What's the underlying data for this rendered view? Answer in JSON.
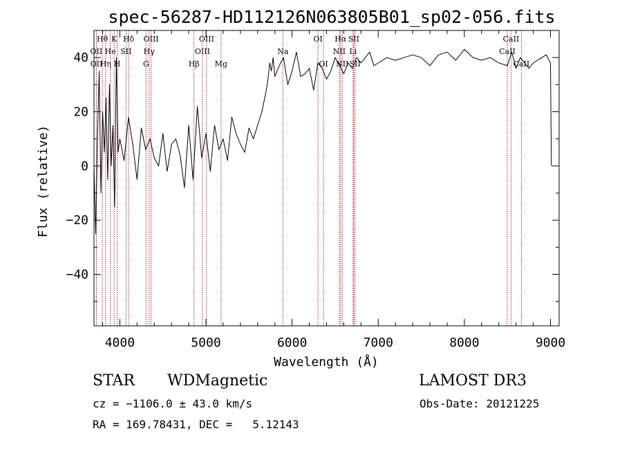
{
  "header": {
    "title": "spec-56287-HD112126N063805B01_sp02-056.fits"
  },
  "footer": {
    "class_label": "STAR",
    "subclass_label": "WDMagnetic",
    "survey_label": "LAMOST DR3",
    "cz_text": "cz = −1106.0 ± 43.0 km/s",
    "obs_date_text": "Obs-Date: 20121225",
    "radec_text": "RA = 169.78431, DEC =   5.12143"
  },
  "chart_data": {
    "type": "line",
    "title": "spec-56287-HD112126N063805B01_sp02-056.fits",
    "xlabel": "Wavelength (Å)",
    "ylabel": "Flux (relative)",
    "xlim": [
      3700,
      9100
    ],
    "ylim": [
      -59,
      50
    ],
    "x_ticks": [
      4000,
      5000,
      6000,
      7000,
      8000,
      9000
    ],
    "x_tick_labels": [
      "4000",
      "5000",
      "6000",
      "7000",
      "8000",
      "9000"
    ],
    "y_ticks": [
      -40,
      -20,
      0,
      20,
      40
    ],
    "y_tick_labels": [
      "−40",
      "−20",
      "0",
      "20",
      "40"
    ],
    "grid": false,
    "line_color": "#000000",
    "marker_color": "#b22222",
    "series": [
      {
        "x": [
          3700,
          3720,
          3740,
          3760,
          3780,
          3800,
          3820,
          3840,
          3860,
          3880,
          3900,
          3920,
          3940,
          3960,
          3980,
          4000,
          4050,
          4100,
          4150,
          4200,
          4250,
          4300,
          4350,
          4400,
          4450,
          4500,
          4550,
          4600,
          4650,
          4700,
          4750,
          4800,
          4850,
          4900,
          4950,
          5000,
          5050,
          5100,
          5150,
          5200,
          5250,
          5300,
          5350,
          5400,
          5450,
          5500,
          5550,
          5600,
          5650,
          5700,
          5720,
          5740,
          5760,
          5780,
          5800,
          5850,
          5900,
          5950,
          6000,
          6050,
          6100,
          6150,
          6200,
          6250,
          6300,
          6350,
          6400,
          6450,
          6500,
          6550,
          6600,
          6650,
          6700,
          6750,
          6800,
          6850,
          6900,
          6950,
          7000,
          7100,
          7200,
          7300,
          7400,
          7500,
          7600,
          7700,
          7800,
          7900,
          8000,
          8100,
          8200,
          8300,
          8400,
          8500,
          8550,
          8600,
          8650,
          8700,
          8750,
          8800,
          8850,
          8900,
          8950,
          9000,
          9010
        ],
        "y": [
          0,
          -25,
          10,
          35,
          -10,
          20,
          5,
          25,
          -5,
          30,
          0,
          15,
          -15,
          40,
          5,
          10,
          2,
          18,
          8,
          -5,
          14,
          6,
          10,
          3,
          0,
          12,
          -2,
          8,
          10,
          4,
          -8,
          15,
          -5,
          22,
          3,
          12,
          -2,
          15,
          6,
          10,
          2,
          18,
          12,
          8,
          5,
          14,
          10,
          15,
          20,
          28,
          32,
          38,
          35,
          40,
          33,
          37,
          40,
          30,
          35,
          42,
          33,
          34,
          36,
          28,
          38,
          36,
          32,
          35,
          40,
          37,
          34,
          38,
          36,
          40,
          38,
          40,
          42,
          37,
          38,
          40,
          39,
          40,
          41,
          40,
          37,
          41,
          42,
          39,
          43,
          40,
          39,
          40,
          38,
          37,
          42,
          36,
          40,
          38,
          36,
          38,
          39,
          40,
          41,
          38,
          0
        ]
      }
    ],
    "line_markers": [
      {
        "label": "Hθ",
        "row": 0,
        "x": 3797
      },
      {
        "label": "K",
        "row": 0,
        "x": 3934
      },
      {
        "label": "Hδ",
        "row": 0,
        "x": 4102
      },
      {
        "label": "OIII",
        "row": 0,
        "x": 4363
      },
      {
        "label": "OIII",
        "row": 0,
        "x": 5007
      },
      {
        "label": "OI",
        "row": 0,
        "x": 6300
      },
      {
        "label": "Hα",
        "row": 0,
        "x": 6563
      },
      {
        "label": "SII",
        "row": 0,
        "x": 6716
      },
      {
        "label": "CaII",
        "row": 0,
        "x": 8542
      },
      {
        "label": "OII",
        "row": 1,
        "x": 3727
      },
      {
        "label": "He",
        "row": 1,
        "x": 3889
      },
      {
        "label": "SII",
        "row": 1,
        "x": 4072
      },
      {
        "label": "Hγ",
        "row": 1,
        "x": 4340
      },
      {
        "label": "OIII",
        "row": 1,
        "x": 4959
      },
      {
        "label": "Na",
        "row": 1,
        "x": 5893
      },
      {
        "label": "NII",
        "row": 1,
        "x": 6548
      },
      {
        "label": "Li",
        "row": 1,
        "x": 6708
      },
      {
        "label": "CaII",
        "row": 1,
        "x": 8498
      },
      {
        "label": "OII",
        "row": 2,
        "x": 3729
      },
      {
        "label": "Hη",
        "row": 2,
        "x": 3835
      },
      {
        "label": "H",
        "row": 2,
        "x": 3969
      },
      {
        "label": "G",
        "row": 2,
        "x": 4305
      },
      {
        "label": "Hβ",
        "row": 2,
        "x": 4861
      },
      {
        "label": "Mg",
        "row": 2,
        "x": 5175
      },
      {
        "label": "OI",
        "row": 2,
        "x": 6364
      },
      {
        "label": "NII",
        "row": 2,
        "x": 6583
      },
      {
        "label": "SII",
        "row": 2,
        "x": 6731
      },
      {
        "label": "CaII",
        "row": 2,
        "x": 8662
      }
    ]
  }
}
